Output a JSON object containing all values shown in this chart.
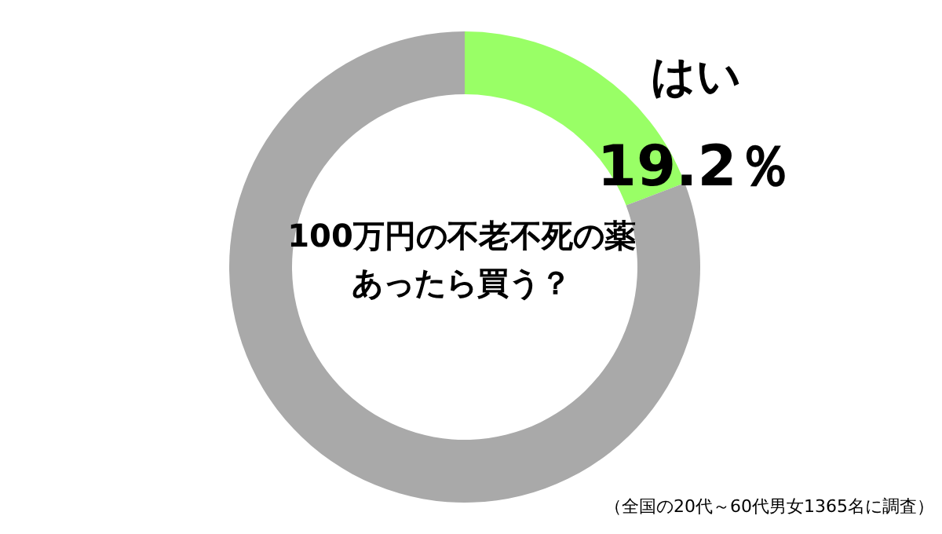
{
  "chart_data": {
    "type": "donut",
    "title": "100万円の不老不死の薬",
    "subtitle": "あったら買う？",
    "categories": [
      "はい",
      null
    ],
    "values": [
      19.2,
      80.8
    ],
    "colors": [
      "#99ff66",
      "#a9a9a9"
    ],
    "value_labels": [
      "19.2％",
      null
    ],
    "annotations": [
      "（全国の20代～60代男女1365名に調査）"
    ]
  }
}
